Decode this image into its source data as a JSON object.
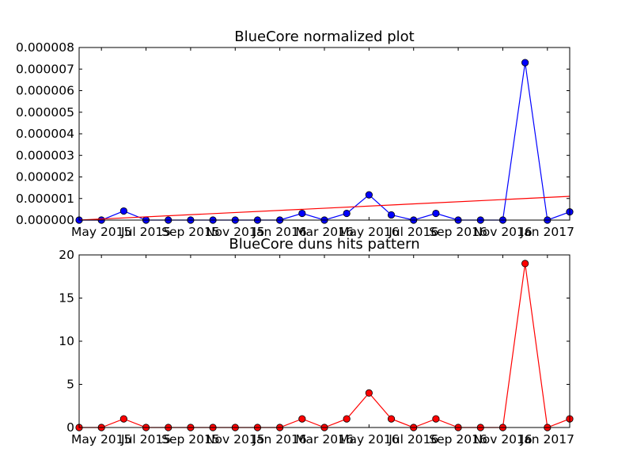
{
  "chart_data": [
    {
      "type": "line",
      "title": "BlueCore normalized plot",
      "xlabel": "",
      "ylabel": "",
      "grid": false,
      "x_tick_labels": [
        "May 2015",
        "Jul 2015",
        "Sep 2015",
        "Nov 2015",
        "Jan 2016",
        "Mar 2016",
        "May 2016",
        "Jul 2016",
        "Sep 2016",
        "Nov 2016",
        "Jan 2017"
      ],
      "y_tick_labels": [
        "0.000000",
        "0.000001",
        "0.000002",
        "0.000003",
        "0.000004",
        "0.000005",
        "0.000006",
        "0.000007",
        "0.000008"
      ],
      "ylim": [
        0,
        8e-06
      ],
      "series": [
        {
          "style": "line-with-markers",
          "color": "#0000ff",
          "values": [
            0.0,
            0.0,
            4.2e-07,
            0.0,
            0.0,
            0.0,
            0.0,
            0.0,
            0.0,
            0.0,
            3.1e-07,
            0.0,
            3.1e-07,
            1.17e-06,
            2.4e-07,
            0.0,
            3.1e-07,
            0.0,
            0.0,
            0.0,
            7.3e-06,
            0.0,
            3.8e-07
          ]
        },
        {
          "style": "trend-line",
          "color": "#ff0000",
          "values": [
            0.0,
            1.1e-06
          ]
        }
      ]
    },
    {
      "type": "line",
      "title": "BlueCore duns hits pattern",
      "xlabel": "",
      "ylabel": "",
      "grid": false,
      "x_tick_labels": [
        "May 2015",
        "Jul 2015",
        "Sep 2015",
        "Nov 2015",
        "Jan 2016",
        "Mar 2016",
        "May 2016",
        "Jul 2016",
        "Sep 2016",
        "Nov 2016",
        "Jan 2017"
      ],
      "y_tick_labels": [
        "0",
        "5",
        "10",
        "15",
        "20"
      ],
      "ylim": [
        0,
        20
      ],
      "series": [
        {
          "style": "line-with-markers",
          "color": "#ff0000",
          "values": [
            0,
            0,
            1,
            0,
            0,
            0,
            0,
            0,
            0,
            0,
            1,
            0,
            1,
            4,
            1,
            0,
            1,
            0,
            0,
            0,
            19,
            0,
            1
          ]
        }
      ]
    }
  ]
}
